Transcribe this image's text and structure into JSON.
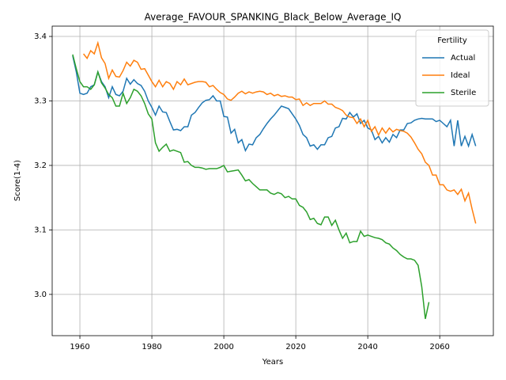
{
  "chart_data": {
    "type": "line",
    "title": "Average_FAVOUR_SPANKING_Black_Below_Average_IQ",
    "x_label": "Years",
    "y_label": "Score(1-4)",
    "legend_title": "Fertility",
    "legend": "upper right",
    "grid": true,
    "x": [
      1958,
      1959,
      1960,
      1961,
      1962,
      1963,
      1964,
      1965,
      1966,
      1967,
      1968,
      1969,
      1970,
      1971,
      1972,
      1973,
      1974,
      1975,
      1976,
      1977,
      1978,
      1979,
      1980,
      1981,
      1982,
      1983,
      1984,
      1985,
      1986,
      1987,
      1988,
      1989,
      1990,
      1991,
      1992,
      1993,
      1994,
      1995,
      1996,
      1997,
      1998,
      1999,
      2000,
      2001,
      2002,
      2003,
      2004,
      2005,
      2006,
      2007,
      2008,
      2009,
      2010,
      2011,
      2012,
      2013,
      2014,
      2015,
      2016,
      2017,
      2018,
      2019,
      2020,
      2021,
      2022,
      2023,
      2024,
      2025,
      2026,
      2027,
      2028,
      2029,
      2030,
      2031,
      2032,
      2033,
      2034,
      2035,
      2036,
      2037,
      2038,
      2039,
      2040,
      2041,
      2042,
      2043,
      2044,
      2045,
      2046,
      2047,
      2048,
      2049,
      2050,
      2051,
      2052,
      2053,
      2054,
      2055,
      2056,
      2057,
      2058,
      2059,
      2060,
      2061,
      2062,
      2063,
      2064,
      2065,
      2066,
      2067,
      2068,
      2069,
      2070
    ],
    "series": [
      {
        "name": "Actual",
        "color": "#1f77b4",
        "values": [
          3.37,
          3.345,
          3.312,
          3.31,
          3.312,
          3.322,
          3.325,
          3.345,
          3.33,
          3.322,
          3.305,
          3.322,
          3.31,
          3.308,
          3.315,
          3.335,
          3.326,
          3.333,
          3.327,
          3.324,
          3.315,
          3.3,
          3.29,
          3.278,
          3.292,
          3.283,
          3.282,
          3.268,
          3.255,
          3.256,
          3.254,
          3.26,
          3.26,
          3.278,
          3.282,
          3.29,
          3.297,
          3.301,
          3.302,
          3.308,
          3.3,
          3.3,
          3.276,
          3.275,
          3.25,
          3.256,
          3.235,
          3.24,
          3.223,
          3.233,
          3.232,
          3.243,
          3.248,
          3.257,
          3.265,
          3.272,
          3.278,
          3.285,
          3.292,
          3.29,
          3.288,
          3.28,
          3.272,
          3.262,
          3.248,
          3.243,
          3.23,
          3.232,
          3.225,
          3.232,
          3.232,
          3.243,
          3.245,
          3.258,
          3.26,
          3.273,
          3.272,
          3.282,
          3.275,
          3.28,
          3.265,
          3.27,
          3.258,
          3.255,
          3.24,
          3.245,
          3.235,
          3.243,
          3.236,
          3.248,
          3.243,
          3.255,
          3.255,
          3.265,
          3.266,
          3.27,
          3.272,
          3.273,
          3.272,
          3.272,
          3.272,
          3.268,
          3.27,
          3.265,
          3.26,
          3.27,
          3.23,
          3.27,
          3.23,
          3.245,
          3.23,
          3.248,
          3.23
        ]
      },
      {
        "name": "Ideal",
        "color": "#ff7f0e",
        "values": [
          null,
          null,
          null,
          3.373,
          3.366,
          3.378,
          3.373,
          3.39,
          3.367,
          3.358,
          3.335,
          3.348,
          3.338,
          3.337,
          3.347,
          3.36,
          3.354,
          3.363,
          3.36,
          3.349,
          3.35,
          3.34,
          3.33,
          3.322,
          3.332,
          3.322,
          3.33,
          3.327,
          3.318,
          3.33,
          3.325,
          3.334,
          3.325,
          3.327,
          3.329,
          3.33,
          3.33,
          3.329,
          3.322,
          3.324,
          3.318,
          3.313,
          3.31,
          3.303,
          3.301,
          3.306,
          3.312,
          3.315,
          3.311,
          3.314,
          3.312,
          3.314,
          3.315,
          3.314,
          3.31,
          3.312,
          3.308,
          3.31,
          3.307,
          3.308,
          3.306,
          3.306,
          3.302,
          3.303,
          3.293,
          3.297,
          3.293,
          3.296,
          3.296,
          3.296,
          3.3,
          3.295,
          3.295,
          3.29,
          3.288,
          3.285,
          3.278,
          3.275,
          3.274,
          3.265,
          3.272,
          3.26,
          3.27,
          3.253,
          3.26,
          3.247,
          3.258,
          3.25,
          3.258,
          3.252,
          3.256,
          3.254,
          3.253,
          3.25,
          3.244,
          3.235,
          3.225,
          3.218,
          3.205,
          3.2,
          3.185,
          3.185,
          3.17,
          3.17,
          3.162,
          3.16,
          3.162,
          3.155,
          3.163,
          3.145,
          3.157,
          3.132,
          3.11
        ]
      },
      {
        "name": "Sterile",
        "color": "#2ca02c",
        "values": [
          3.372,
          3.35,
          3.33,
          3.322,
          3.322,
          3.318,
          3.325,
          3.345,
          3.328,
          3.32,
          3.31,
          3.305,
          3.292,
          3.292,
          3.312,
          3.296,
          3.305,
          3.318,
          3.315,
          3.308,
          3.296,
          3.28,
          3.272,
          3.235,
          3.222,
          3.228,
          3.233,
          3.222,
          3.224,
          3.222,
          3.22,
          3.205,
          3.206,
          3.2,
          3.197,
          3.197,
          3.196,
          3.194,
          3.195,
          3.195,
          3.195,
          3.197,
          3.2,
          3.19,
          3.191,
          3.192,
          3.193,
          3.185,
          3.176,
          3.178,
          3.172,
          3.167,
          3.162,
          3.162,
          3.162,
          3.157,
          3.155,
          3.158,
          3.156,
          3.15,
          3.152,
          3.148,
          3.148,
          3.138,
          3.135,
          3.128,
          3.116,
          3.118,
          3.11,
          3.108,
          3.12,
          3.12,
          3.107,
          3.115,
          3.1,
          3.087,
          3.095,
          3.08,
          3.082,
          3.082,
          3.098,
          3.09,
          3.092,
          3.09,
          3.088,
          3.087,
          3.085,
          3.08,
          3.078,
          3.072,
          3.068,
          3.062,
          3.058,
          3.055,
          3.055,
          3.053,
          3.045,
          3.012,
          2.962,
          2.988,
          null,
          null,
          null,
          null,
          null,
          null,
          null,
          null,
          null,
          null,
          null,
          null,
          null
        ]
      }
    ],
    "xlim": [
      1952.3,
      2074.9
    ],
    "xticks": [
      1960,
      1980,
      2000,
      2020,
      2040,
      2060
    ],
    "ylim": [
      2.936,
      3.416
    ],
    "yticks": [
      {
        "value": 3,
        "label": "3.0"
      },
      3.1,
      3.2,
      3.3,
      3.4
    ]
  }
}
